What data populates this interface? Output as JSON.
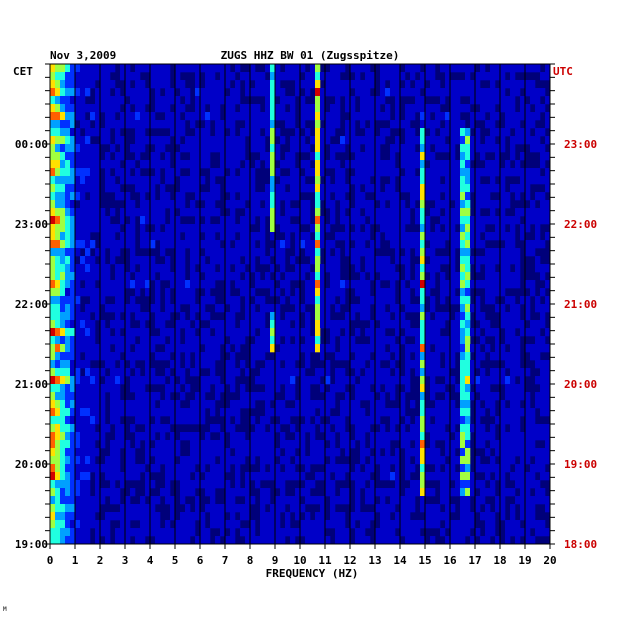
{
  "chart_data": {
    "type": "heatmap",
    "date": "Nov 3,2009",
    "station": "ZUGS HHZ BW 01 (Zugsspitze)",
    "left_timezone": "CET",
    "right_timezone": "UTC",
    "xlabel": "FREQUENCY (HZ)",
    "xlim": [
      0,
      20
    ],
    "x_ticks": [
      "0",
      "1",
      "2",
      "3",
      "4",
      "5",
      "6",
      "7",
      "8",
      "9",
      "10",
      "11",
      "12",
      "13",
      "14",
      "15",
      "16",
      "17",
      "18",
      "19",
      "20"
    ],
    "left_time_ticks": [
      "00:00",
      "23:00",
      "22:00",
      "21:00",
      "20:00",
      "19:00"
    ],
    "right_time_ticks": [
      "23:00",
      "22:00",
      "21:00",
      "20:00",
      "19:00",
      "18:00"
    ],
    "colormap": [
      "#00007a",
      "#0000c8",
      "#0030ff",
      "#00a0ff",
      "#20ffe0",
      "#a0ff40",
      "#ffe000",
      "#ff6000",
      "#d00000"
    ],
    "spectral_lines_hz": [
      0.3,
      8.9,
      10.7,
      14.9,
      16.6
    ],
    "corner_mark": "M"
  }
}
